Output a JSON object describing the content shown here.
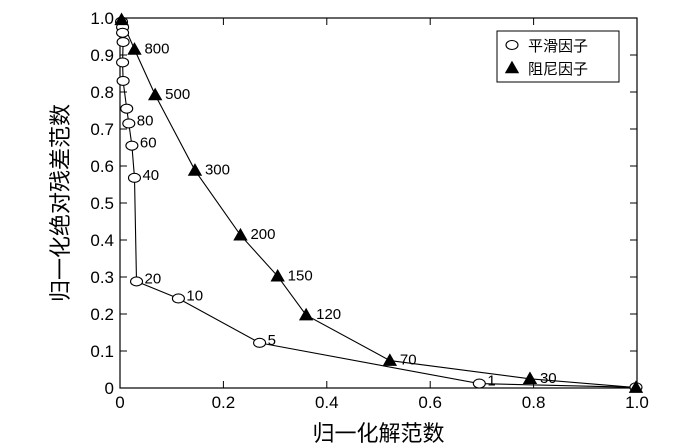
{
  "chart_data": {
    "type": "line",
    "title": "",
    "xlabel": "归一化解范数",
    "ylabel": "归一化绝对残差范数",
    "xlim": [
      0,
      1
    ],
    "ylim": [
      0,
      1
    ],
    "grid": false,
    "legend_position": "top-right",
    "x_ticks": [
      "0",
      "0.2",
      "0.4",
      "0.6",
      "0.8",
      "1.0"
    ],
    "y_ticks": [
      "0",
      "0.1",
      "0.2",
      "0.3",
      "0.4",
      "0.5",
      "0.6",
      "0.7",
      "0.8",
      "0.9",
      "1.0"
    ],
    "series": [
      {
        "name": "平滑因子",
        "marker": "open-circle",
        "color": "#000000",
        "points": [
          {
            "x": 0.003,
            "y": 0.99,
            "label": ""
          },
          {
            "x": 0.005,
            "y": 0.975,
            "label": ""
          },
          {
            "x": 0.005,
            "y": 0.96,
            "label": ""
          },
          {
            "x": 0.006,
            "y": 0.935,
            "label": ""
          },
          {
            "x": 0.005,
            "y": 0.88,
            "label": ""
          },
          {
            "x": 0.006,
            "y": 0.83,
            "label": ""
          },
          {
            "x": 0.013,
            "y": 0.755,
            "label": ""
          },
          {
            "x": 0.017,
            "y": 0.715,
            "label": "80"
          },
          {
            "x": 0.023,
            "y": 0.655,
            "label": "60"
          },
          {
            "x": 0.028,
            "y": 0.568,
            "label": "40"
          },
          {
            "x": 0.032,
            "y": 0.288,
            "label": "20"
          },
          {
            "x": 0.113,
            "y": 0.242,
            "label": "10"
          },
          {
            "x": 0.27,
            "y": 0.122,
            "label": "5"
          },
          {
            "x": 0.695,
            "y": 0.012,
            "label": "1"
          },
          {
            "x": 0.998,
            "y": 0.002,
            "label": ""
          }
        ]
      },
      {
        "name": "阻尼因子",
        "marker": "filled-triangle",
        "color": "#000000",
        "points": [
          {
            "x": 0.003,
            "y": 0.995,
            "label": ""
          },
          {
            "x": 0.028,
            "y": 0.915,
            "label": "800"
          },
          {
            "x": 0.068,
            "y": 0.792,
            "label": "500"
          },
          {
            "x": 0.145,
            "y": 0.588,
            "label": "300"
          },
          {
            "x": 0.233,
            "y": 0.413,
            "label": "200"
          },
          {
            "x": 0.305,
            "y": 0.302,
            "label": "150"
          },
          {
            "x": 0.36,
            "y": 0.197,
            "label": "120"
          },
          {
            "x": 0.522,
            "y": 0.074,
            "label": "70"
          },
          {
            "x": 0.793,
            "y": 0.025,
            "label": "30"
          },
          {
            "x": 0.998,
            "y": 0.001,
            "label": ""
          }
        ]
      }
    ]
  }
}
